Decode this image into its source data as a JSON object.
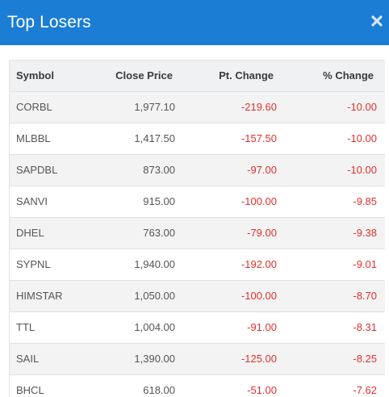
{
  "modal": {
    "title": "Top Losers",
    "close_icon": "close-x-icon"
  },
  "table": {
    "headers": {
      "symbol": "Symbol",
      "close_price": "Close Price",
      "pt_change": "Pt. Change",
      "pct_change": "% Change"
    },
    "rows": [
      {
        "symbol": "CORBL",
        "close_price": "1,977.10",
        "pt_change": "-219.60",
        "pct_change": "-10.00"
      },
      {
        "symbol": "MLBBL",
        "close_price": "1,417.50",
        "pt_change": "-157.50",
        "pct_change": "-10.00"
      },
      {
        "symbol": "SAPDBL",
        "close_price": "873.00",
        "pt_change": "-97.00",
        "pct_change": "-10.00"
      },
      {
        "symbol": "SANVI",
        "close_price": "915.00",
        "pt_change": "-100.00",
        "pct_change": "-9.85"
      },
      {
        "symbol": "DHEL",
        "close_price": "763.00",
        "pt_change": "-79.00",
        "pct_change": "-9.38"
      },
      {
        "symbol": "SYPNL",
        "close_price": "1,940.00",
        "pt_change": "-192.00",
        "pct_change": "-9.01"
      },
      {
        "symbol": "HIMSTAR",
        "close_price": "1,050.00",
        "pt_change": "-100.00",
        "pct_change": "-8.70"
      },
      {
        "symbol": "TTL",
        "close_price": "1,004.00",
        "pt_change": "-91.00",
        "pct_change": "-8.31"
      },
      {
        "symbol": "SAIL",
        "close_price": "1,390.00",
        "pt_change": "-125.00",
        "pct_change": "-8.25"
      },
      {
        "symbol": "BHCL",
        "close_price": "618.00",
        "pt_change": "-51.00",
        "pct_change": "-7.62"
      }
    ]
  },
  "colors": {
    "header_bg": "#1b7dd4",
    "negative": "#e0312e"
  }
}
